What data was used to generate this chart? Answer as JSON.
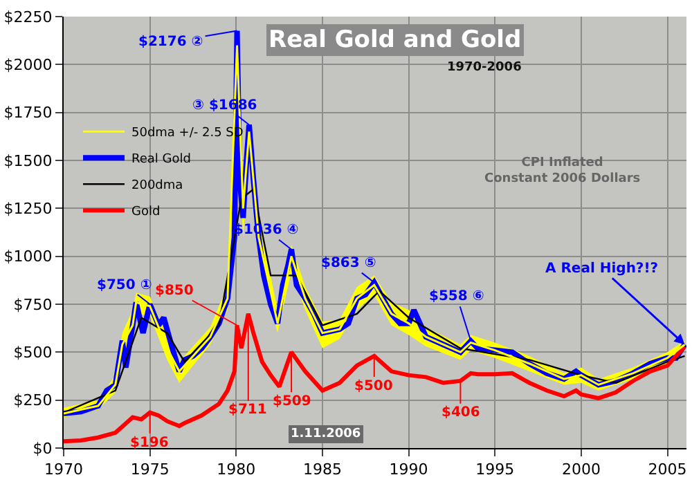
{
  "chart_data": {
    "type": "line",
    "title": "Real Gold and Gold",
    "subtitle": "1970-2006",
    "xlim": [
      1970,
      2006.1
    ],
    "xticks": [
      1970,
      1975,
      1980,
      1985,
      1990,
      1995,
      2000,
      2005
    ],
    "ylim": [
      0,
      2250
    ],
    "yticks": [
      {
        "value": 0,
        "label": "$0"
      },
      {
        "value": 250,
        "label": "$250"
      },
      {
        "value": 500,
        "label": "$500"
      },
      {
        "value": 750,
        "label": "$750"
      },
      {
        "value": 1000,
        "label": "$1000"
      },
      {
        "value": 1250,
        "label": "$1250"
      },
      {
        "value": 1500,
        "label": "$1500"
      },
      {
        "value": 1750,
        "label": "$1750"
      },
      {
        "value": 2000,
        "label": "$2000"
      },
      {
        "value": 2250,
        "label": "$2250"
      }
    ],
    "grid": true,
    "legend": "top left",
    "series": [
      {
        "name": "50dma +/- 2.5 SD",
        "color": "#ffff00",
        "x": [
          1970,
          1972,
          1973,
          1973.4,
          1974,
          1974.2,
          1975,
          1976,
          1976.7,
          1977.5,
          1978.5,
          1979.5,
          1980.05,
          1980.4,
          1980.75,
          1981.3,
          1982.4,
          1983.2,
          1984,
          1985,
          1986,
          1987,
          1988,
          1989,
          1990,
          1991,
          1993,
          1993.6,
          1995,
          1997,
          1999,
          2000,
          2001,
          2003,
          2005,
          2006
        ],
        "values": [
          180,
          220,
          330,
          540,
          640,
          760,
          740,
          520,
          400,
          480,
          580,
          780,
          2100,
          1250,
          1650,
          1100,
          650,
          1000,
          780,
          600,
          620,
          780,
          850,
          700,
          650,
          580,
          500,
          550,
          510,
          440,
          360,
          380,
          330,
          390,
          470,
          540
        ],
        "upper": [
          210,
          250,
          380,
          600,
          720,
          810,
          790,
          580,
          450,
          530,
          630,
          850,
          2180,
          1400,
          1700,
          1200,
          720,
          1060,
          840,
          660,
          670,
          840,
          900,
          760,
          720,
          630,
          540,
          590,
          550,
          480,
          390,
          420,
          360,
          420,
          500,
          560
        ],
        "lower": [
          160,
          200,
          290,
          480,
          560,
          700,
          690,
          460,
          340,
          430,
          540,
          720,
          1800,
          1100,
          1500,
          1000,
          600,
          920,
          720,
          520,
          570,
          720,
          800,
          640,
          590,
          530,
          460,
          510,
          470,
          400,
          330,
          340,
          300,
          360,
          440,
          510
        ]
      },
      {
        "name": "Real Gold",
        "color": "#0000ff",
        "x": [
          1970,
          1971,
          1972,
          1972.5,
          1973,
          1973.4,
          1973.6,
          1974,
          1974.2,
          1974.6,
          1975,
          1975.5,
          1975.8,
          1976.3,
          1976.7,
          1977,
          1977.5,
          1978,
          1978.5,
          1979,
          1979.5,
          1979.9,
          1980.05,
          1980.2,
          1980.4,
          1980.6,
          1980.75,
          1981,
          1981.3,
          1981.6,
          1982,
          1982.4,
          1982.7,
          1983,
          1983.2,
          1983.5,
          1984,
          1984.5,
          1985,
          1985.5,
          1986,
          1986.5,
          1987,
          1987.5,
          1988,
          1988.5,
          1989,
          1989.5,
          1990,
          1990.3,
          1990.7,
          1991,
          1992,
          1993,
          1993.6,
          1994,
          1995,
          1996,
          1997,
          1998,
          1999,
          1999.7,
          2000,
          2001,
          2002,
          2003,
          2004,
          2005,
          2005.5,
          2006
        ],
        "values": [
          180,
          190,
          220,
          300,
          330,
          560,
          420,
          640,
          760,
          600,
          750,
          640,
          680,
          520,
          400,
          460,
          480,
          520,
          580,
          650,
          780,
          1100,
          2176,
          1400,
          1200,
          1500,
          1686,
          1400,
          1100,
          900,
          750,
          650,
          850,
          950,
          1036,
          850,
          780,
          700,
          600,
          610,
          620,
          650,
          780,
          800,
          863,
          780,
          700,
          650,
          650,
          720,
          640,
          580,
          540,
          500,
          558,
          520,
          510,
          500,
          440,
          390,
          360,
          400,
          380,
          330,
          350,
          390,
          440,
          470,
          470,
          540
        ]
      },
      {
        "name": "200dma",
        "color": "#000000",
        "x": [
          1970,
          1973,
          1974.5,
          1976,
          1977,
          1979,
          1980.3,
          1981,
          1982,
          1983.5,
          1985,
          1987,
          1988.3,
          1990,
          1993,
          1997,
          2000,
          2002,
          2005,
          2006
        ],
        "values": [
          185,
          300,
          680,
          600,
          450,
          640,
          1300,
          1350,
          900,
          900,
          640,
          700,
          820,
          680,
          520,
          460,
          380,
          340,
          450,
          480
        ]
      },
      {
        "name": "Gold",
        "color": "#ff0000",
        "x": [
          1970,
          1971,
          1972,
          1973,
          1973.5,
          1974,
          1974.5,
          1975,
          1975.5,
          1976,
          1976.7,
          1977,
          1978,
          1979,
          1979.5,
          1979.9,
          1980.05,
          1980.3,
          1980.7,
          1981,
          1981.5,
          1982,
          1982.5,
          1983,
          1983.2,
          1984,
          1985,
          1986,
          1987,
          1988,
          1989,
          1990,
          1991,
          1992,
          1993,
          1993.6,
          1994,
          1995,
          1996,
          1997,
          1998,
          1999,
          1999.7,
          2000,
          2001,
          2002,
          2003,
          2004,
          2005,
          2006
        ],
        "values": [
          35,
          40,
          55,
          80,
          120,
          160,
          150,
          185,
          170,
          140,
          115,
          130,
          170,
          230,
          300,
          400,
          640,
          520,
          700,
          600,
          450,
          380,
          320,
          450,
          500,
          400,
          300,
          340,
          430,
          480,
          400,
          380,
          370,
          340,
          350,
          390,
          385,
          385,
          390,
          340,
          300,
          270,
          300,
          280,
          260,
          290,
          350,
          400,
          430,
          530
        ]
      }
    ],
    "annotations": [
      "CPI Inflated\nConstant 2006 Dollars",
      "1.11.2006",
      {
        "text": "$750 ①",
        "x": 1975,
        "y": 750
      },
      {
        "text": "$2176 ②",
        "x": 1980.05,
        "y": 2176
      },
      {
        "text": "③ $1686",
        "x": 1980.75,
        "y": 1686
      },
      {
        "text": "$1036 ④",
        "x": 1983.2,
        "y": 1036
      },
      {
        "text": "$863 ⑤",
        "x": 1988,
        "y": 863
      },
      {
        "text": "$558 ⑥",
        "x": 1993.6,
        "y": 558
      },
      {
        "text": "$196",
        "x": 1975,
        "y": 185
      },
      {
        "text": "$850",
        "x": 1980.05,
        "y": 640
      },
      {
        "text": "$711",
        "x": 1980.7,
        "y": 700
      },
      {
        "text": "$509",
        "x": 1983.2,
        "y": 500
      },
      {
        "text": "$500",
        "x": 1988,
        "y": 480
      },
      {
        "text": "$406",
        "x": 1993,
        "y": 340
      },
      {
        "text": "A Real High?!?",
        "x": 2006,
        "y": 540
      }
    ]
  }
}
